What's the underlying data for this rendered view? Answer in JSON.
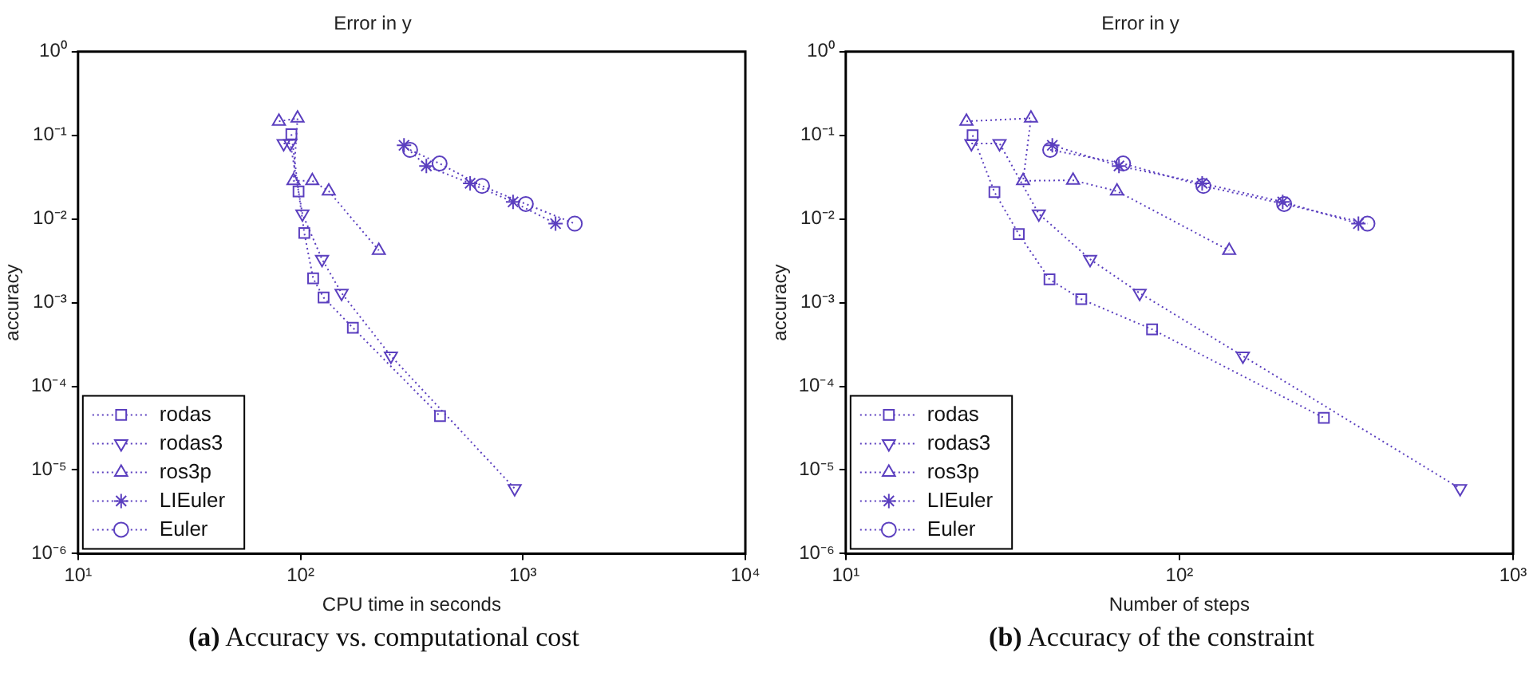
{
  "chart_data": [
    {
      "type": "line",
      "title": "Error in y",
      "xlabel": "CPU time in seconds",
      "ylabel": "accuracy",
      "log": "xy",
      "grid": false,
      "legend": "bottom left",
      "line_style": "dotted",
      "xlim": [
        10,
        10000
      ],
      "xticks": [
        {
          "value": 10,
          "label": "10¹"
        },
        {
          "value": 100,
          "label": "10²"
        },
        {
          "value": 1000,
          "label": "10³"
        },
        {
          "value": 10000,
          "label": "10⁴"
        }
      ],
      "ylim": [
        1e-06,
        1
      ],
      "yticks": [
        {
          "value": 1e-06,
          "label": "10⁻⁶"
        },
        {
          "value": 1e-05,
          "label": "10⁻⁵"
        },
        {
          "value": 0.0001,
          "label": "10⁻⁴"
        },
        {
          "value": 0.001,
          "label": "10⁻³"
        },
        {
          "value": 0.01,
          "label": "10⁻²"
        },
        {
          "value": 0.1,
          "label": "10⁻¹"
        },
        {
          "value": 1,
          "label": "10⁰"
        }
      ],
      "annotations": [
        "(a) Accuracy vs. computational cost"
      ],
      "series": [
        {
          "name": "rodas",
          "color": "#5b3fbf",
          "marker": "square",
          "x": [
            91,
            98,
            104,
            114,
            127,
            172,
            424
          ],
          "values": [
            0.103,
            0.0213,
            0.0068,
            0.00195,
            0.00115,
            0.0005,
            4.4e-05
          ]
        },
        {
          "name": "rodas3",
          "color": "#5b3fbf",
          "marker": "triangle-down",
          "x": [
            84,
            90,
            102,
            125,
            153,
            255,
            918
          ],
          "values": [
            0.08,
            0.08,
            0.0115,
            0.0033,
            0.0013,
            0.00023,
            6e-06
          ]
        },
        {
          "name": "ros3p",
          "color": "#5b3fbf",
          "marker": "triangle",
          "x": [
            80,
            97,
            93,
            113,
            134,
            225
          ],
          "values": [
            0.147,
            0.16,
            0.0286,
            0.0286,
            0.0215,
            0.0042
          ]
        },
        {
          "name": "LIEuler",
          "color": "#5b3fbf",
          "marker": "cross",
          "x": [
            292,
            368,
            579,
            903,
            1402
          ],
          "values": [
            0.076,
            0.043,
            0.0267,
            0.016,
            0.0088
          ]
        },
        {
          "name": "Euler",
          "color": "#5b3fbf",
          "marker": "circle",
          "x": [
            311,
            422,
            655,
            1030,
            1710
          ],
          "values": [
            0.067,
            0.046,
            0.0248,
            0.0151,
            0.0088
          ]
        }
      ]
    },
    {
      "type": "line",
      "title": "Error in y",
      "xlabel": "Number of steps",
      "ylabel": "accuracy",
      "log": "xy",
      "grid": false,
      "legend": "bottom left",
      "line_style": "dotted",
      "xlim": [
        10,
        1000
      ],
      "xticks": [
        {
          "value": 10,
          "label": "10¹"
        },
        {
          "value": 100,
          "label": "10²"
        },
        {
          "value": 1000,
          "label": "10³"
        }
      ],
      "ylim": [
        1e-06,
        1
      ],
      "yticks": [
        {
          "value": 1e-06,
          "label": "10⁻⁶"
        },
        {
          "value": 1e-05,
          "label": "10⁻⁵"
        },
        {
          "value": 0.0001,
          "label": "10⁻⁴"
        },
        {
          "value": 0.001,
          "label": "10⁻³"
        },
        {
          "value": 0.01,
          "label": "10⁻²"
        },
        {
          "value": 0.1,
          "label": "10⁻¹"
        },
        {
          "value": 1,
          "label": "10⁰"
        }
      ],
      "annotations": [
        "(b) Accuracy of the constraint"
      ],
      "series": [
        {
          "name": "rodas",
          "color": "#5b3fbf",
          "marker": "square",
          "x": [
            24,
            27.9,
            33,
            40.8,
            50.8,
            82.8,
            271
          ],
          "values": [
            0.1,
            0.021,
            0.0066,
            0.0019,
            0.0011,
            0.00048,
            4.2e-05
          ]
        },
        {
          "name": "rodas3",
          "color": "#5b3fbf",
          "marker": "triangle-down",
          "x": [
            23.8,
            28.9,
            37.9,
            54,
            76,
            155,
            694
          ],
          "values": [
            0.08,
            0.08,
            0.0115,
            0.0033,
            0.0013,
            0.00023,
            6e-06
          ]
        },
        {
          "name": "ros3p",
          "color": "#5b3fbf",
          "marker": "triangle",
          "x": [
            23,
            35.9,
            34,
            48,
            65,
            141
          ],
          "values": [
            0.147,
            0.16,
            0.0286,
            0.029,
            0.0215,
            0.0042
          ]
        },
        {
          "name": "LIEuler",
          "color": "#5b3fbf",
          "marker": "cross",
          "x": [
            41.6,
            65.9,
            117,
            204,
            344
          ],
          "values": [
            0.076,
            0.043,
            0.0267,
            0.016,
            0.0088
          ]
        },
        {
          "name": "Euler",
          "color": "#5b3fbf",
          "marker": "circle",
          "x": [
            41,
            67.8,
            118,
            206,
            366
          ],
          "values": [
            0.067,
            0.046,
            0.0248,
            0.0151,
            0.0088
          ]
        }
      ]
    }
  ]
}
